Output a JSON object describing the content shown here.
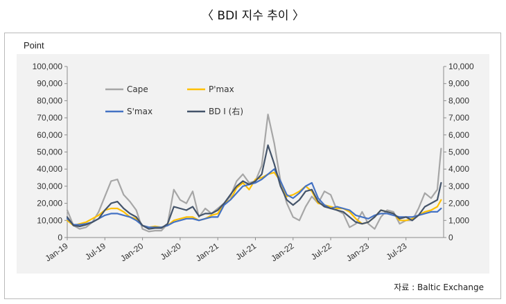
{
  "title": "〈 BDI 지수 추이 〉",
  "source": "자료 : Baltic Exchange",
  "chart_data": {
    "type": "line",
    "unit_label": "Point",
    "x_tick_labels": [
      "Jan-19",
      "Jul-19",
      "Jan-20",
      "Jul-20",
      "Jan-21",
      "Jul-21",
      "Jan-22",
      "Jul-22",
      "Jan-23",
      "Jul-23"
    ],
    "x_tick_months": [
      0,
      6,
      12,
      18,
      24,
      30,
      36,
      42,
      48,
      54
    ],
    "x_range_months": [
      0,
      60
    ],
    "y_left": {
      "range": [
        0,
        100000
      ],
      "tick_labels": [
        "0",
        "10,000",
        "20,000",
        "30,000",
        "40,000",
        "50,000",
        "60,000",
        "70,000",
        "80,000",
        "90,000",
        "100,000"
      ]
    },
    "y_right": {
      "range": [
        0,
        10000
      ],
      "tick_labels": [
        "0",
        "1,000",
        "2,000",
        "3,000",
        "4,000",
        "5,000",
        "6,000",
        "7,000",
        "8,000",
        "9,000",
        "10,000"
      ]
    },
    "grid": false,
    "legend_position": "top-left",
    "x_months": [
      0,
      1,
      2,
      3,
      4,
      5,
      6,
      7,
      8,
      9,
      10,
      11,
      12,
      13,
      14,
      15,
      16,
      17,
      18,
      19,
      20,
      21,
      22,
      23,
      24,
      25,
      26,
      27,
      28,
      29,
      30,
      31,
      32,
      33,
      34,
      35,
      36,
      37,
      38,
      39,
      40,
      41,
      42,
      43,
      44,
      45,
      46,
      47,
      48,
      49,
      50,
      51,
      52,
      53,
      54,
      55,
      56,
      57,
      58,
      59,
      59.6
    ],
    "series": [
      {
        "name": "Cape",
        "axis": "left",
        "color": "#a6a6a6",
        "width": 2.2,
        "values": [
          16000,
          7000,
          5000,
          6000,
          9000,
          15000,
          24000,
          33000,
          34000,
          25000,
          21000,
          16000,
          5000,
          3500,
          4000,
          4000,
          8000,
          28000,
          22000,
          20000,
          27000,
          12000,
          17000,
          14000,
          17000,
          20000,
          24000,
          33000,
          37000,
          32000,
          33000,
          42000,
          72000,
          55000,
          33000,
          20000,
          12000,
          10000,
          18000,
          24000,
          20000,
          27000,
          25000,
          16000,
          14000,
          6000,
          8000,
          15000,
          8000,
          5000,
          12000,
          16000,
          15000,
          8000,
          10000,
          10000,
          17000,
          26000,
          23000,
          28000,
          52000
        ]
      },
      {
        "name": "P'max",
        "axis": "left",
        "color": "#ffc000",
        "width": 2.2,
        "values": [
          10000,
          7000,
          8000,
          9000,
          11000,
          13000,
          16000,
          17000,
          17000,
          15000,
          12000,
          11000,
          7000,
          6000,
          6500,
          6000,
          7000,
          10000,
          11000,
          12000,
          12000,
          10000,
          11000,
          13000,
          14000,
          20000,
          22000,
          29000,
          32000,
          28000,
          34000,
          35000,
          37000,
          38000,
          33000,
          24000,
          25000,
          27000,
          30000,
          27000,
          20000,
          19000,
          18000,
          17000,
          17000,
          15000,
          11000,
          8000,
          9000,
          12000,
          16000,
          15000,
          14000,
          10000,
          10000,
          11000,
          13000,
          15000,
          16000,
          18000,
          22000
        ]
      },
      {
        "name": "S'max",
        "axis": "left",
        "color": "#4472c4",
        "width": 2.2,
        "values": [
          11000,
          7500,
          7500,
          8000,
          9000,
          11000,
          13000,
          14000,
          14000,
          13000,
          12000,
          10000,
          7000,
          6000,
          6000,
          6000,
          7000,
          9000,
          10000,
          11000,
          11000,
          10000,
          11000,
          12000,
          12000,
          19000,
          22000,
          26000,
          30000,
          31000,
          32000,
          34000,
          37000,
          40000,
          33000,
          25000,
          23000,
          26000,
          30000,
          32000,
          23000,
          19000,
          17000,
          18000,
          17000,
          16000,
          13000,
          12000,
          11000,
          13000,
          14000,
          14000,
          13000,
          12000,
          12000,
          12000,
          13000,
          14000,
          15000,
          15000,
          17000
        ]
      },
      {
        "name": "BD I (右)",
        "axis": "right",
        "color": "#44546a",
        "width": 2.2,
        "values": [
          1200,
          700,
          650,
          750,
          900,
          1100,
          1600,
          2000,
          2100,
          1700,
          1400,
          1200,
          700,
          500,
          550,
          550,
          800,
          1800,
          1700,
          1600,
          1800,
          1250,
          1400,
          1400,
          1600,
          2000,
          2500,
          3000,
          3300,
          3100,
          3300,
          3700,
          5400,
          4300,
          3000,
          2200,
          1900,
          2200,
          2700,
          2800,
          2100,
          1800,
          1700,
          1600,
          1500,
          1200,
          900,
          800,
          900,
          1200,
          1600,
          1500,
          1400,
          1100,
          1200,
          1000,
          1300,
          1800,
          2000,
          2200,
          3200
        ]
      }
    ]
  }
}
